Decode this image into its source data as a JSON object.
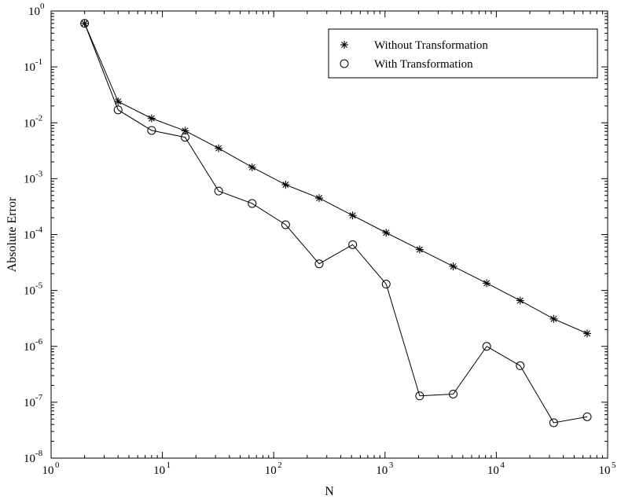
{
  "chart_data": {
    "type": "line",
    "title": "",
    "xlabel": "N",
    "ylabel": "Absolute Error",
    "xscale": "log",
    "yscale": "log",
    "xlim": [
      1,
      100000
    ],
    "ylim": [
      1e-08,
      1
    ],
    "grid": false,
    "legend_position": "top-right",
    "x_ticks": [
      {
        "base": "10",
        "exp": "0"
      },
      {
        "base": "10",
        "exp": "1"
      },
      {
        "base": "10",
        "exp": "2"
      },
      {
        "base": "10",
        "exp": "3"
      },
      {
        "base": "10",
        "exp": "4"
      },
      {
        "base": "10",
        "exp": "5"
      }
    ],
    "y_ticks": [
      {
        "base": "10",
        "exp": "0"
      },
      {
        "base": "10",
        "exp": "-1"
      },
      {
        "base": "10",
        "exp": "-2"
      },
      {
        "base": "10",
        "exp": "-3"
      },
      {
        "base": "10",
        "exp": "-4"
      },
      {
        "base": "10",
        "exp": "-5"
      },
      {
        "base": "10",
        "exp": "-6"
      },
      {
        "base": "10",
        "exp": "-7"
      },
      {
        "base": "10",
        "exp": "-8"
      }
    ],
    "x": [
      2,
      4,
      8,
      16,
      32,
      64,
      128,
      256,
      512,
      1024,
      2048,
      4096,
      8192,
      16384,
      32768,
      65536
    ],
    "series": [
      {
        "name": "Without Transformation",
        "marker": "asterisk",
        "color": "#000000",
        "values": [
          0.6,
          0.024,
          0.012,
          0.0072,
          0.0035,
          0.0016,
          0.00078,
          0.00045,
          0.00022,
          0.000108,
          5.4e-05,
          2.7e-05,
          1.35e-05,
          6.6e-06,
          3.1e-06,
          1.7e-06
        ]
      },
      {
        "name": "With Transformation",
        "marker": "circle",
        "color": "#000000",
        "values": [
          0.6,
          0.017,
          0.0073,
          0.0055,
          0.0006,
          0.00036,
          0.00015,
          3e-05,
          6.6e-05,
          1.3e-05,
          1.3e-07,
          1.4e-07,
          1e-06,
          4.5e-07,
          4.3e-08,
          5.5e-08
        ]
      }
    ]
  }
}
